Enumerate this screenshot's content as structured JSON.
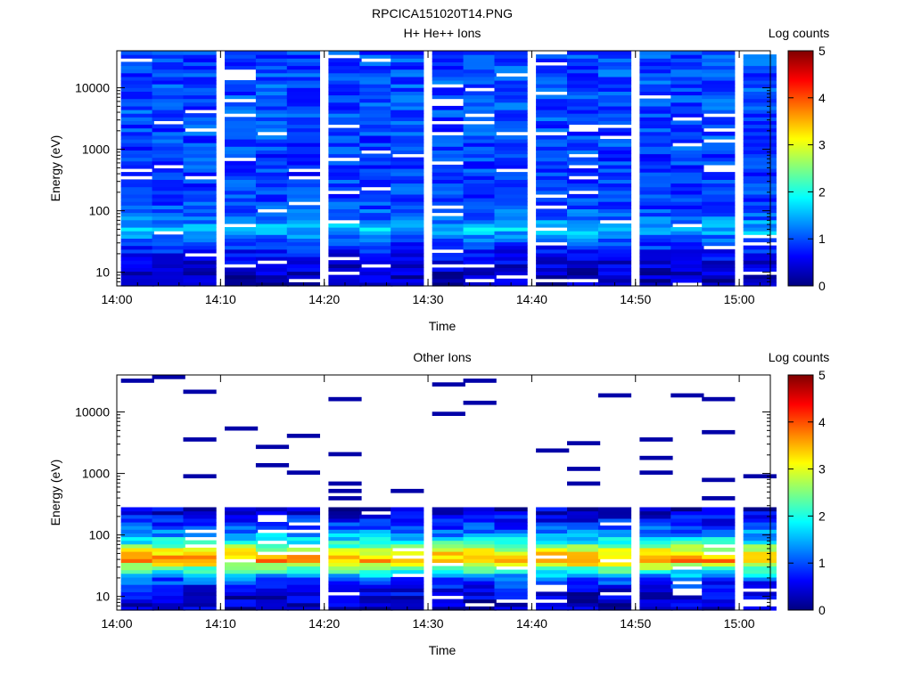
{
  "file_title": "RPCICA151020T14.PNG",
  "colors": {
    "scale": [
      "#00007f",
      "#0000ff",
      "#0080ff",
      "#00ffff",
      "#80ff80",
      "#ffff00",
      "#ff8000",
      "#ff0000",
      "#7f0000"
    ]
  },
  "chart_data": [
    {
      "type": "heatmap",
      "title": "H+ He++ Ions",
      "xlabel": "Time",
      "ylabel": "Energy (eV)",
      "colorbar_label": "Log counts",
      "colorbar_ticks": [
        "0",
        "1",
        "2",
        "3",
        "4",
        "5"
      ],
      "x_ticks": [
        "14:00",
        "14:10",
        "14:20",
        "14:30",
        "14:40",
        "14:50",
        "15:00"
      ],
      "y_ticks": [
        "10",
        "100",
        "1000",
        "10000"
      ],
      "y_scale": "log",
      "xlim": [
        "14:00",
        "15:03"
      ],
      "ylim": [
        6,
        40000
      ],
      "zlim": [
        0,
        5
      ],
      "grid": false,
      "time_bins": [
        "14:02",
        "14:05",
        "14:08",
        "14:12",
        "14:15",
        "14:18",
        "14:22",
        "14:25",
        "14:28",
        "14:32",
        "14:35",
        "14:38",
        "14:42",
        "14:45",
        "14:48",
        "14:52",
        "14:55",
        "14:58",
        "15:02"
      ],
      "energy_range_eV": [
        6,
        40000
      ],
      "profile": [
        {
          "energy_eV": 8,
          "log_counts": 0.3
        },
        {
          "energy_eV": 15,
          "log_counts": 0.5
        },
        {
          "energy_eV": 30,
          "log_counts": 0.9
        },
        {
          "energy_eV": 50,
          "log_counts": 1.6
        },
        {
          "energy_eV": 80,
          "log_counts": 1.1
        },
        {
          "energy_eV": 150,
          "log_counts": 0.9
        },
        {
          "energy_eV": 500,
          "log_counts": 0.9
        },
        {
          "energy_eV": 2000,
          "log_counts": 0.95
        },
        {
          "energy_eV": 10000,
          "log_counts": 1.0
        },
        {
          "energy_eV": 35000,
          "log_counts": 0.95
        }
      ]
    },
    {
      "type": "heatmap",
      "title": "Other Ions",
      "xlabel": "Time",
      "ylabel": "Energy (eV)",
      "colorbar_label": "Log counts",
      "colorbar_ticks": [
        "0",
        "1",
        "2",
        "3",
        "4",
        "5"
      ],
      "x_ticks": [
        "14:00",
        "14:10",
        "14:20",
        "14:30",
        "14:40",
        "14:50",
        "15:00"
      ],
      "y_ticks": [
        "10",
        "100",
        "1000",
        "10000"
      ],
      "y_scale": "log",
      "xlim": [
        "14:00",
        "15:03"
      ],
      "ylim": [
        6,
        40000
      ],
      "zlim": [
        0,
        5
      ],
      "grid": false,
      "time_bins": [
        "14:02",
        "14:05",
        "14:08",
        "14:12",
        "14:15",
        "14:18",
        "14:22",
        "14:25",
        "14:28",
        "14:32",
        "14:35",
        "14:38",
        "14:42",
        "14:45",
        "14:48",
        "14:52",
        "14:55",
        "14:58",
        "15:02"
      ],
      "energy_range_eV": [
        6,
        40000
      ],
      "profile": [
        {
          "energy_eV": 8,
          "log_counts": 0.3
        },
        {
          "energy_eV": 12,
          "log_counts": 0.5
        },
        {
          "energy_eV": 20,
          "log_counts": 1.1
        },
        {
          "energy_eV": 30,
          "log_counts": 2.6
        },
        {
          "energy_eV": 40,
          "log_counts": 3.7
        },
        {
          "energy_eV": 55,
          "log_counts": 3.0
        },
        {
          "energy_eV": 80,
          "log_counts": 1.8
        },
        {
          "energy_eV": 150,
          "log_counts": 0.8
        },
        {
          "energy_eV": 300,
          "log_counts": 0.3
        }
      ],
      "sparse_high_energy_hits_log_counts": 0.2
    }
  ]
}
